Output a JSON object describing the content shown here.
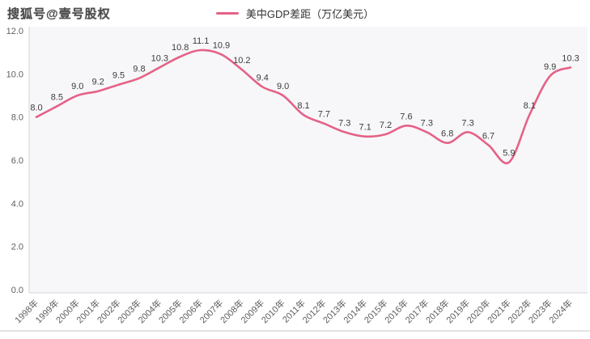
{
  "watermark": "搜狐号@壹号股权",
  "legend": {
    "label": "美中GDP差距（万亿美元）"
  },
  "colors": {
    "line": "#e56287",
    "plot_bg": "#f7f7f9",
    "axis": "#d6d6dc",
    "data_label": "#3c3c3c",
    "tick_label": "#5f5f63",
    "divider": "#d9d9d9",
    "watermark": "#3d3d3d",
    "legend_text": "#333333"
  },
  "chart_data": {
    "type": "line",
    "title": "美中GDP差距（万亿美元）",
    "categories": [
      "1998年",
      "1999年",
      "2000年",
      "2001年",
      "2002年",
      "2003年",
      "2004年",
      "2005年",
      "2006年",
      "2007年",
      "2008年",
      "2009年",
      "2010年",
      "2011年",
      "2012年",
      "2013年",
      "2014年",
      "2015年",
      "2016年",
      "2017年",
      "2018年",
      "2019年",
      "2020年",
      "2021年",
      "2022年",
      "2023年",
      "2024年"
    ],
    "series": [
      {
        "name": "美中GDP差距（万亿美元）",
        "values": [
          8.0,
          8.5,
          9.0,
          9.2,
          9.5,
          9.8,
          10.3,
          10.8,
          11.1,
          10.9,
          10.2,
          9.4,
          9.0,
          8.1,
          7.7,
          7.3,
          7.1,
          7.2,
          7.6,
          7.3,
          6.8,
          7.3,
          6.7,
          5.9,
          8.1,
          9.9,
          10.3
        ]
      }
    ],
    "ylim": [
      0,
      12
    ],
    "ytick_labels": [
      "0.0",
      "2.0",
      "4.0",
      "6.0",
      "8.0",
      "10.0",
      "12.0"
    ],
    "grid": false,
    "legend_position": "top-center",
    "smooth": true,
    "point_labels_visible": true
  }
}
